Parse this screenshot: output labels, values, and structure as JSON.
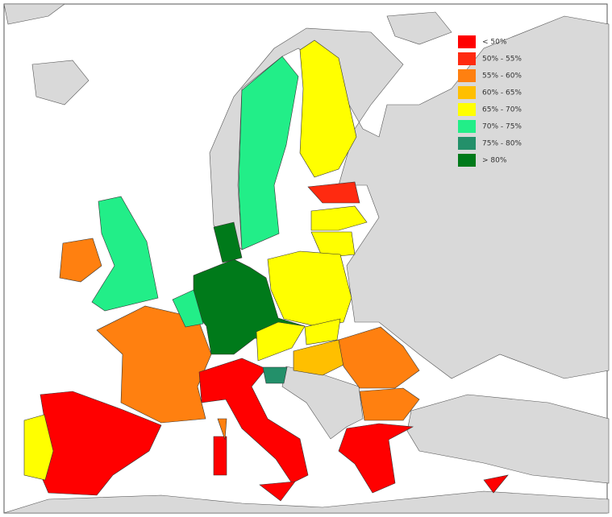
{
  "legend": {
    "items": [
      {
        "label": "< 50%",
        "color": "#ff0000"
      },
      {
        "label": "50% - 55%",
        "color": "#ff2a10"
      },
      {
        "label": "55% - 60%",
        "color": "#ff8010"
      },
      {
        "label": "60% - 65%",
        "color": "#ffbf00"
      },
      {
        "label": "65% - 70%",
        "color": "#ffff00"
      },
      {
        "label": "70% - 75%",
        "color": "#22ee88"
      },
      {
        "label": "75% - 80%",
        "color": "#23906a"
      },
      {
        "label": "> 80%",
        "color": "#007a1a"
      }
    ]
  }
}
